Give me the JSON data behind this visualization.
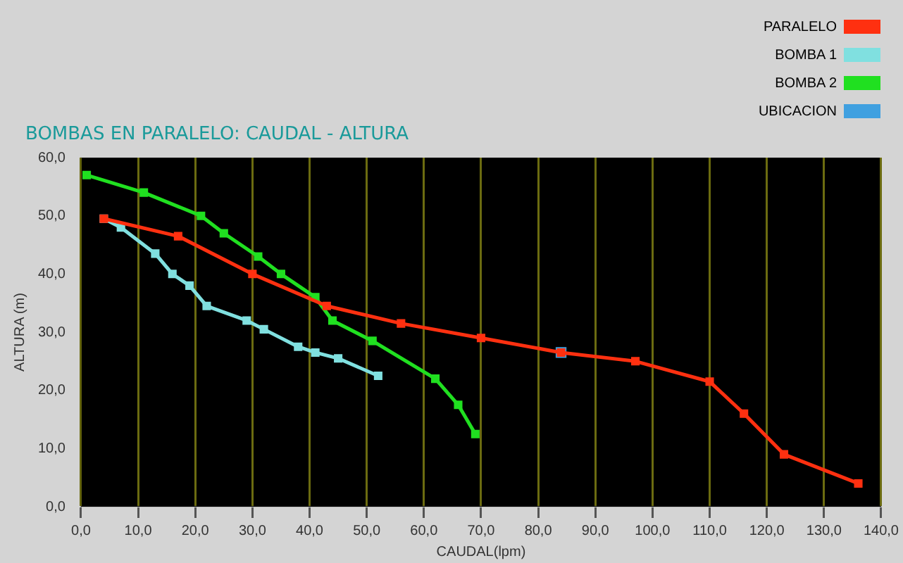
{
  "chart_data": {
    "type": "line",
    "title": "BOMBAS EN PARALELO: CAUDAL - ALTURA",
    "xlabel": "CAUDAL(lpm)",
    "ylabel": "ALTURA (m)",
    "xlim": [
      0,
      140
    ],
    "xticks": [
      {
        "value": 0,
        "label": "0,0"
      },
      {
        "value": 10,
        "label": "10,0"
      },
      {
        "value": 20,
        "label": "20,0"
      },
      {
        "value": 30,
        "label": "30,0"
      },
      {
        "value": 40,
        "label": "40,0"
      },
      {
        "value": 50,
        "label": "50,0"
      },
      {
        "value": 60,
        "label": "60,0"
      },
      {
        "value": 70,
        "label": "70,0"
      },
      {
        "value": 80,
        "label": "80,0"
      },
      {
        "value": 90,
        "label": "90,0"
      },
      {
        "value": 100,
        "label": "100,0"
      },
      {
        "value": 110,
        "label": "110,0"
      },
      {
        "value": 120,
        "label": "120,0"
      },
      {
        "value": 130,
        "label": "130,0"
      },
      {
        "value": 140,
        "label": "140,0"
      }
    ],
    "ylim": [
      0,
      60
    ],
    "yticks": [
      {
        "value": 0,
        "label": "0,0"
      },
      {
        "value": 10,
        "label": "10,0"
      },
      {
        "value": 20,
        "label": "20,0"
      },
      {
        "value": 30,
        "label": "30,0"
      },
      {
        "value": 40,
        "label": "40,0"
      },
      {
        "value": 50,
        "label": "50,0"
      },
      {
        "value": 60,
        "label": "60,0"
      }
    ],
    "grid": "x",
    "legend": "top right",
    "marker": "square",
    "series": [
      {
        "name": "PARALELO",
        "color": "#ff3010",
        "x": [
          4,
          17,
          30,
          43,
          56,
          70,
          84,
          97,
          110,
          116,
          123,
          136
        ],
        "values": [
          49.5,
          46.5,
          40,
          34.5,
          31.5,
          29,
          26.5,
          25,
          21.5,
          16,
          9,
          4
        ]
      },
      {
        "name": "BOMBA 1",
        "color": "#80e0e0",
        "x": [
          4,
          7,
          13,
          16,
          19,
          22,
          29,
          32,
          38,
          41,
          45,
          52
        ],
        "values": [
          49.5,
          48,
          43.5,
          40,
          38,
          34.5,
          32,
          30.5,
          27.5,
          26.5,
          25.5,
          22.5
        ]
      },
      {
        "name": "BOMBA 2",
        "color": "#20e020",
        "x": [
          1,
          11,
          21,
          25,
          31,
          35,
          41,
          44,
          51,
          62,
          66,
          69
        ],
        "values": [
          57,
          54,
          50,
          47,
          43,
          40,
          36,
          32,
          28.5,
          22,
          17.5,
          12.5
        ]
      },
      {
        "name": "UBICACION",
        "type": "scatter",
        "color": "#40a0e0",
        "x": [
          84
        ],
        "values": [
          26.5
        ]
      }
    ]
  }
}
